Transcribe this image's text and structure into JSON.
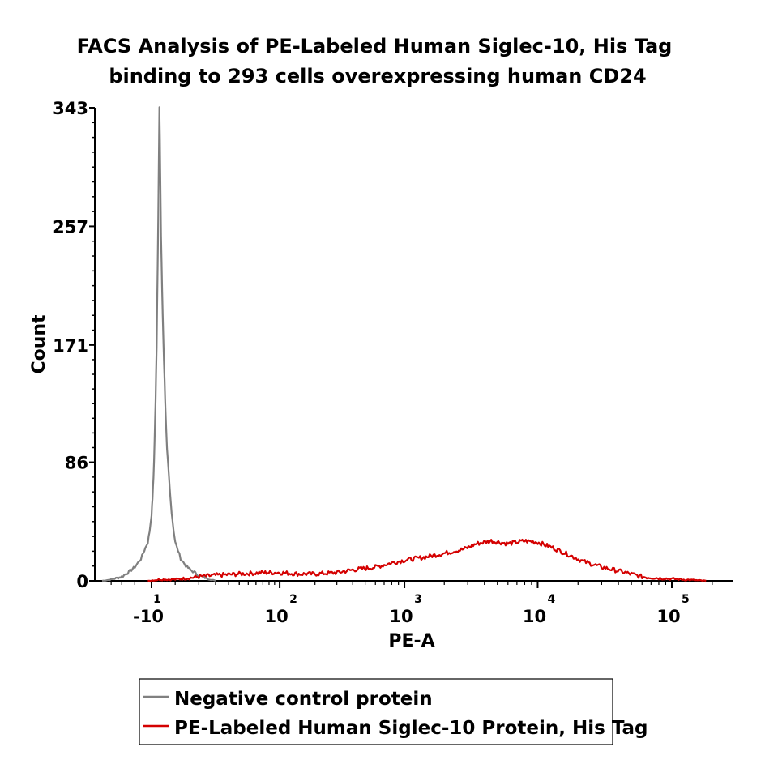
{
  "chart_data": {
    "type": "line",
    "title": "FACS Analysis of PE-Labeled Human Siglec-10, His Tag",
    "subtitle": "binding to 293 cells overexpressing human CD24",
    "xlabel": "PE-A",
    "ylabel": "Count",
    "x_scale": "biexponential",
    "x_ticks": [
      {
        "value": -10,
        "label": "-10",
        "exp": "1"
      },
      {
        "value": 100,
        "label": "10",
        "exp": "2"
      },
      {
        "value": 1000,
        "label": "10",
        "exp": "3"
      },
      {
        "value": 10000,
        "label": "10",
        "exp": "4"
      },
      {
        "value": 100000,
        "label": "10",
        "exp": "5"
      }
    ],
    "y_ticks": [
      "0",
      "86",
      "171",
      "257",
      "343"
    ],
    "ylim": [
      0,
      343
    ],
    "grid": false,
    "legend_position": "bottom",
    "series": [
      {
        "name": "Negative control protein",
        "color": "#808080",
        "points": [
          [
            -50,
            0
          ],
          [
            -40,
            1
          ],
          [
            -30,
            3
          ],
          [
            -25,
            6
          ],
          [
            -20,
            10
          ],
          [
            -16,
            16
          ],
          [
            -14,
            22
          ],
          [
            -12,
            28
          ],
          [
            -11,
            36
          ],
          [
            -10,
            48
          ],
          [
            -9.5,
            60
          ],
          [
            -9,
            75
          ],
          [
            -8.5,
            100
          ],
          [
            -8,
            130
          ],
          [
            -7.5,
            170
          ],
          [
            -7,
            230
          ],
          [
            -6.5,
            300
          ],
          [
            -6.2,
            343
          ],
          [
            -6,
            320
          ],
          [
            -5.8,
            290
          ],
          [
            -5.5,
            250
          ],
          [
            -5,
            210
          ],
          [
            -4.5,
            175
          ],
          [
            -4,
            145
          ],
          [
            -3.5,
            118
          ],
          [
            -3,
            95
          ],
          [
            -2.5,
            82
          ],
          [
            -2,
            68
          ],
          [
            -1.5,
            55
          ],
          [
            -1,
            45
          ],
          [
            -0.5,
            36
          ],
          [
            0,
            28
          ],
          [
            1,
            22
          ],
          [
            2,
            16
          ],
          [
            4,
            11
          ],
          [
            6,
            8
          ],
          [
            10,
            4
          ],
          [
            14,
            2
          ],
          [
            20,
            0
          ]
        ]
      },
      {
        "name": "PE-Labeled Human Siglec-10 Protein, His Tag",
        "color": "#d40000",
        "points": [
          [
            -12,
            0
          ],
          [
            -6,
            1
          ],
          [
            -3,
            1
          ],
          [
            0,
            1
          ],
          [
            5,
            2
          ],
          [
            10,
            3
          ],
          [
            20,
            4
          ],
          [
            40,
            5
          ],
          [
            70,
            6
          ],
          [
            100,
            6
          ],
          [
            150,
            5
          ],
          [
            200,
            5
          ],
          [
            300,
            6
          ],
          [
            400,
            8
          ],
          [
            600,
            10
          ],
          [
            800,
            13
          ],
          [
            1000,
            15
          ],
          [
            1400,
            17
          ],
          [
            2000,
            20
          ],
          [
            2800,
            23
          ],
          [
            3500,
            27
          ],
          [
            4500,
            29
          ],
          [
            6000,
            27
          ],
          [
            8000,
            29
          ],
          [
            10000,
            28
          ],
          [
            13000,
            24
          ],
          [
            17000,
            19
          ],
          [
            22000,
            14
          ],
          [
            30000,
            10
          ],
          [
            45000,
            6
          ],
          [
            60000,
            3
          ],
          [
            80000,
            2
          ],
          [
            120000,
            1
          ],
          [
            180000,
            0
          ]
        ]
      }
    ]
  }
}
